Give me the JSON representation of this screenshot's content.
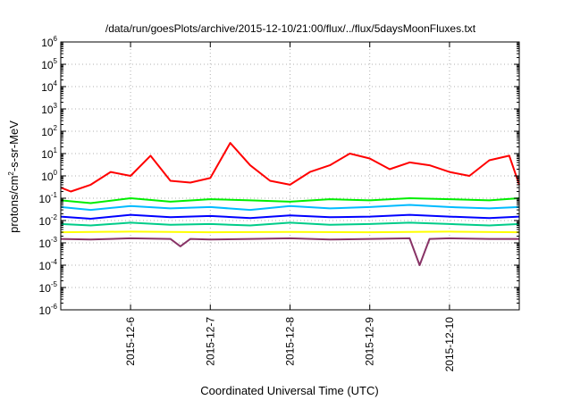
{
  "chart_data": {
    "type": "line",
    "title": "/data/run/goesPlots/archive/2015-12-10/21:00/flux/../flux/5daysMoonFluxes.txt",
    "xlabel": "Coordinated Universal Time (UTC)",
    "ylabel": {
      "prefix": "protons/cm",
      "sup": "2",
      "suffix": "-s-sr-MeV"
    },
    "yscale": "log",
    "ylim": [
      1e-06,
      1000000.0
    ],
    "yticks": [
      {
        "base": "10",
        "exp": "6",
        "value": 1000000.0
      },
      {
        "base": "10",
        "exp": "5",
        "value": 100000.0
      },
      {
        "base": "10",
        "exp": "4",
        "value": 10000.0
      },
      {
        "base": "10",
        "exp": "3",
        "value": 1000.0
      },
      {
        "base": "10",
        "exp": "2",
        "value": 100.0
      },
      {
        "base": "10",
        "exp": "1",
        "value": 10.0
      },
      {
        "base": "10",
        "exp": "0",
        "value": 1.0
      },
      {
        "base": "10",
        "exp": "-1",
        "value": 0.1
      },
      {
        "base": "10",
        "exp": "-2",
        "value": 0.01
      },
      {
        "base": "10",
        "exp": "-3",
        "value": 0.001
      },
      {
        "base": "10",
        "exp": "-4",
        "value": 0.0001
      },
      {
        "base": "10",
        "exp": "-5",
        "value": 1e-05
      },
      {
        "base": "10",
        "exp": "-6",
        "value": 1e-06
      }
    ],
    "xlim": [
      "2015-12-05T03:00",
      "2015-12-10T21:00"
    ],
    "xticks": [
      "2015-12-6",
      "2015-12-7",
      "2015-12-8",
      "2015-12-9",
      "2015-12-10"
    ],
    "grid": true,
    "series": [
      {
        "color": "#ff0000",
        "x": [
          "2015-12-05T03:00",
          "2015-12-05T06:00",
          "2015-12-05T12:00",
          "2015-12-05T18:00",
          "2015-12-06T00:00",
          "2015-12-06T06:00",
          "2015-12-06T12:00",
          "2015-12-06T18:00",
          "2015-12-07T00:00",
          "2015-12-07T06:00",
          "2015-12-07T12:00",
          "2015-12-07T18:00",
          "2015-12-08T00:00",
          "2015-12-08T06:00",
          "2015-12-08T12:00",
          "2015-12-08T18:00",
          "2015-12-09T00:00",
          "2015-12-09T06:00",
          "2015-12-09T12:00",
          "2015-12-09T18:00",
          "2015-12-10T00:00",
          "2015-12-10T06:00",
          "2015-12-10T12:00",
          "2015-12-10T18:00",
          "2015-12-10T21:00"
        ],
        "values": [
          0.3,
          0.2,
          0.4,
          1.5,
          1.0,
          8.0,
          0.6,
          0.5,
          0.8,
          30,
          3.0,
          0.6,
          0.4,
          1.5,
          3.0,
          10,
          6.0,
          2.0,
          4.0,
          3.0,
          1.5,
          1.0,
          5.0,
          8.0,
          0.4
        ]
      },
      {
        "color": "#00ee00",
        "x": [
          "2015-12-05T03:00",
          "2015-12-05T12:00",
          "2015-12-06T00:00",
          "2015-12-06T12:00",
          "2015-12-07T00:00",
          "2015-12-07T12:00",
          "2015-12-08T00:00",
          "2015-12-08T12:00",
          "2015-12-09T00:00",
          "2015-12-09T12:00",
          "2015-12-10T00:00",
          "2015-12-10T12:00",
          "2015-12-10T21:00"
        ],
        "values": [
          0.08,
          0.06,
          0.1,
          0.07,
          0.09,
          0.08,
          0.07,
          0.09,
          0.08,
          0.1,
          0.09,
          0.08,
          0.1
        ]
      },
      {
        "color": "#00bbff",
        "x": [
          "2015-12-05T03:00",
          "2015-12-05T12:00",
          "2015-12-06T00:00",
          "2015-12-06T12:00",
          "2015-12-07T00:00",
          "2015-12-07T12:00",
          "2015-12-08T00:00",
          "2015-12-08T12:00",
          "2015-12-09T00:00",
          "2015-12-09T12:00",
          "2015-12-10T00:00",
          "2015-12-10T12:00",
          "2015-12-10T21:00"
        ],
        "values": [
          0.04,
          0.03,
          0.045,
          0.035,
          0.04,
          0.03,
          0.045,
          0.035,
          0.04,
          0.05,
          0.04,
          0.035,
          0.04
        ]
      },
      {
        "color": "#0000ff",
        "x": [
          "2015-12-05T03:00",
          "2015-12-05T12:00",
          "2015-12-06T00:00",
          "2015-12-06T12:00",
          "2015-12-07T00:00",
          "2015-12-07T12:00",
          "2015-12-08T00:00",
          "2015-12-08T12:00",
          "2015-12-09T00:00",
          "2015-12-09T12:00",
          "2015-12-10T00:00",
          "2015-12-10T12:00",
          "2015-12-10T21:00"
        ],
        "values": [
          0.015,
          0.012,
          0.018,
          0.014,
          0.016,
          0.013,
          0.017,
          0.014,
          0.015,
          0.018,
          0.015,
          0.013,
          0.015
        ]
      },
      {
        "color": "#00cc88",
        "x": [
          "2015-12-05T03:00",
          "2015-12-05T12:00",
          "2015-12-06T00:00",
          "2015-12-06T12:00",
          "2015-12-07T00:00",
          "2015-12-07T12:00",
          "2015-12-08T00:00",
          "2015-12-08T12:00",
          "2015-12-09T00:00",
          "2015-12-09T12:00",
          "2015-12-10T00:00",
          "2015-12-10T12:00",
          "2015-12-10T21:00"
        ],
        "values": [
          0.007,
          0.006,
          0.008,
          0.0065,
          0.007,
          0.006,
          0.008,
          0.0065,
          0.007,
          0.008,
          0.007,
          0.006,
          0.007
        ]
      },
      {
        "color": "#ffff00",
        "x": [
          "2015-12-05T03:00",
          "2015-12-06T00:00",
          "2015-12-07T00:00",
          "2015-12-08T00:00",
          "2015-12-09T00:00",
          "2015-12-10T00:00",
          "2015-12-10T21:00"
        ],
        "values": [
          0.003,
          0.0032,
          0.003,
          0.0031,
          0.003,
          0.0032,
          0.003
        ]
      },
      {
        "color": "#883366",
        "x": [
          "2015-12-05T03:00",
          "2015-12-05T12:00",
          "2015-12-06T00:00",
          "2015-12-06T12:00",
          "2015-12-06T15:00",
          "2015-12-06T18:00",
          "2015-12-07T00:00",
          "2015-12-07T12:00",
          "2015-12-08T00:00",
          "2015-12-08T12:00",
          "2015-12-09T00:00",
          "2015-12-09T12:00",
          "2015-12-09T15:00",
          "2015-12-09T18:00",
          "2015-12-10T00:00",
          "2015-12-10T12:00",
          "2015-12-10T21:00"
        ],
        "values": [
          0.0015,
          0.0014,
          0.0016,
          0.0015,
          0.0007,
          0.0015,
          0.0014,
          0.0015,
          0.0016,
          0.0014,
          0.0015,
          0.0016,
          0.0001,
          0.0015,
          0.0016,
          0.0015,
          0.0015
        ]
      }
    ]
  }
}
